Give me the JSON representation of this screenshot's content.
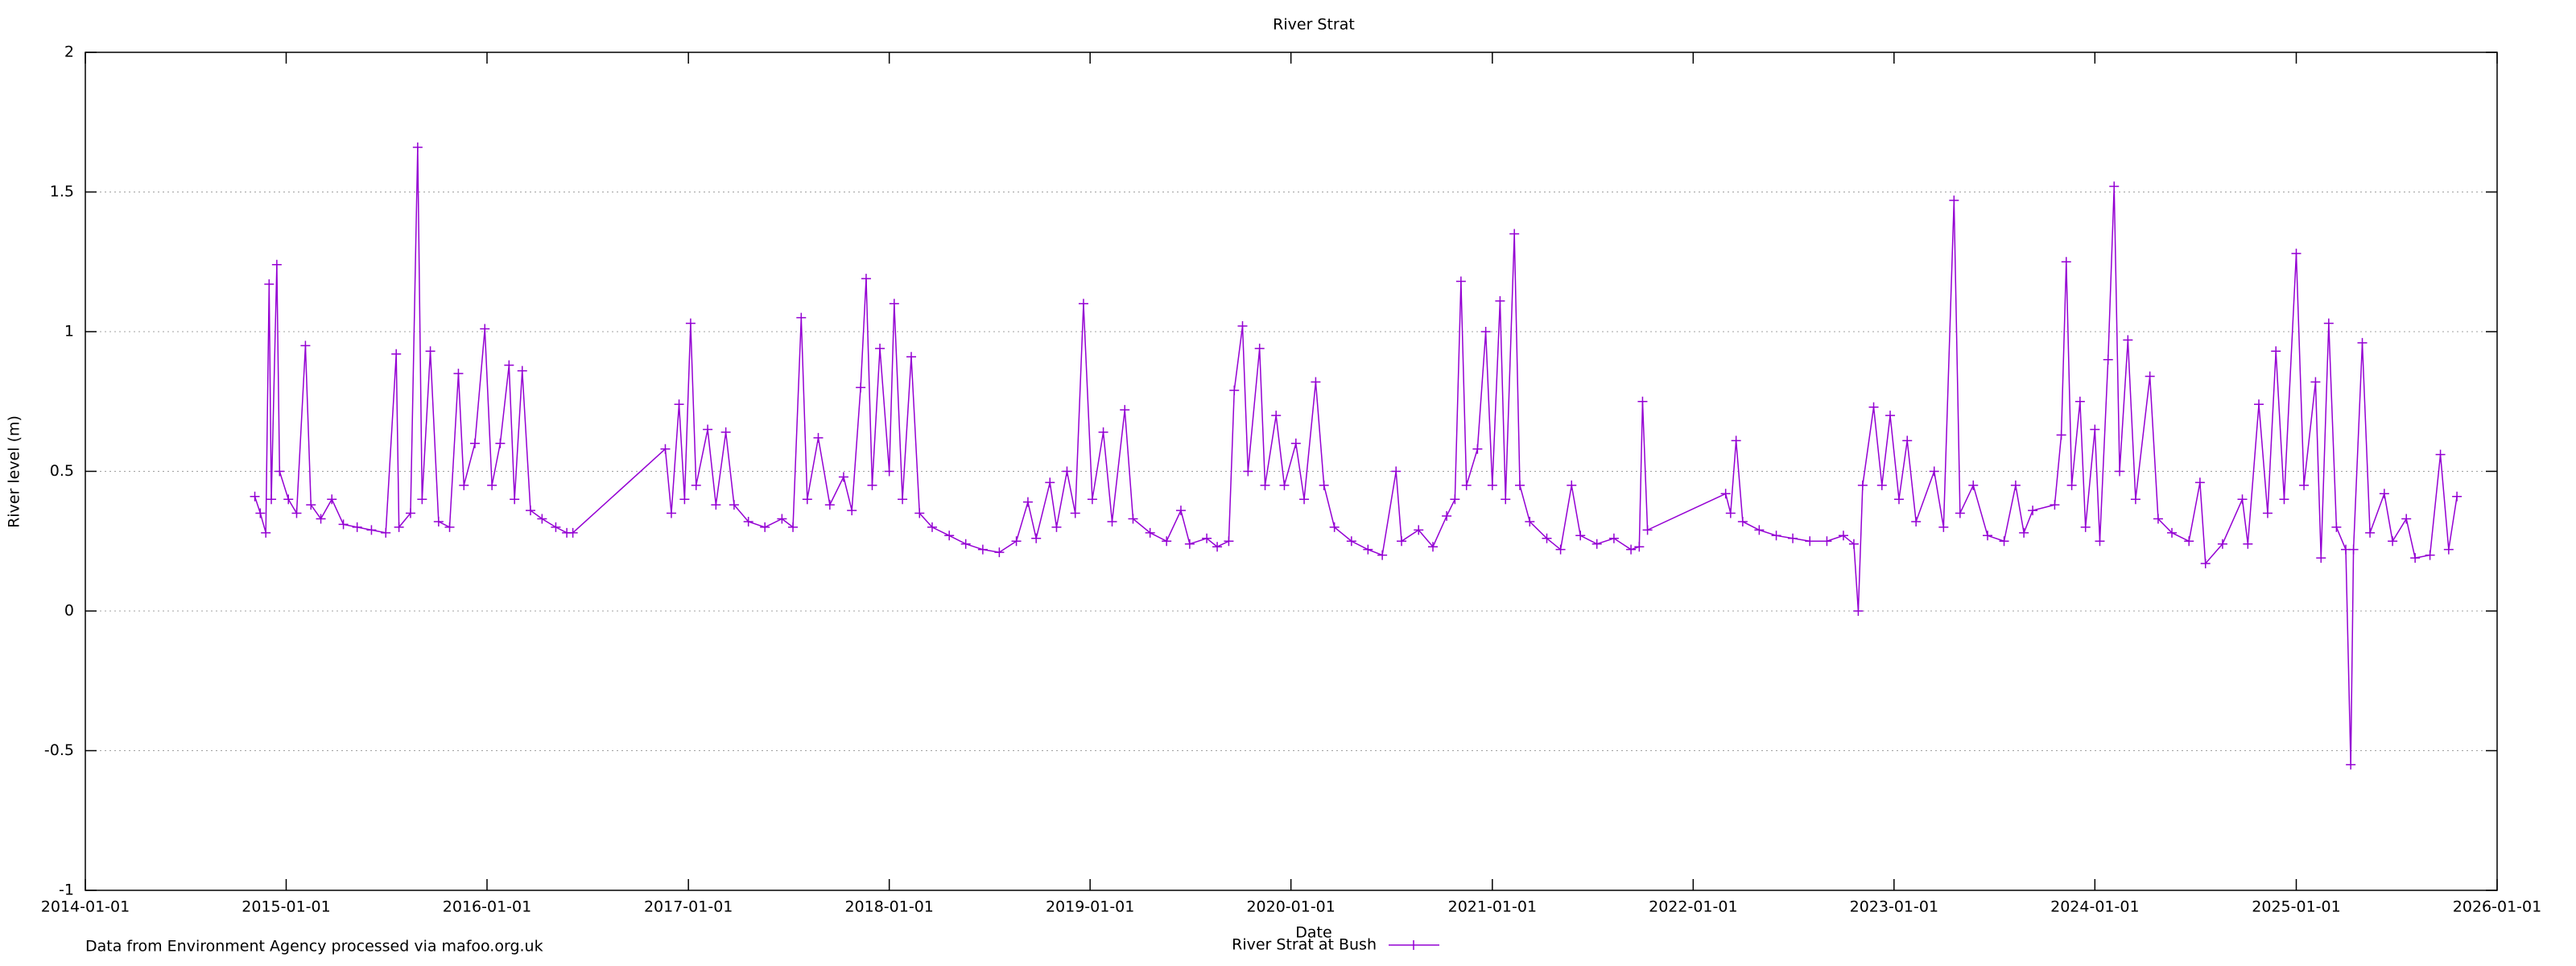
{
  "chart_data": {
    "type": "line",
    "title": "River Strat",
    "x_label": "Date",
    "y_label": "River level (m)",
    "note": "Data from Environment Agency processed via mafoo.org.uk",
    "xlim": [
      "2014-01-01",
      "2026-01-01"
    ],
    "xticks": [
      "2014-01-01",
      "2015-01-01",
      "2016-01-01",
      "2017-01-01",
      "2018-01-01",
      "2019-01-01",
      "2020-01-01",
      "2021-01-01",
      "2022-01-01",
      "2023-01-01",
      "2024-01-01",
      "2025-01-01",
      "2026-01-01"
    ],
    "ylim": [
      -1,
      2
    ],
    "yticks": [
      -1,
      -0.5,
      0,
      0.5,
      1,
      1.5,
      2
    ],
    "grid": true,
    "legend": "bottom",
    "series": [
      {
        "name": "River Strat at Bush",
        "color": "#9400d3",
        "x": [
          "2014-11-05",
          "2014-11-15",
          "2014-11-25",
          "2014-12-01",
          "2014-12-05",
          "2014-12-15",
          "2014-12-20",
          "2015-01-05",
          "2015-01-20",
          "2015-02-05",
          "2015-02-15",
          "2015-03-05",
          "2015-03-25",
          "2015-04-15",
          "2015-05-10",
          "2015-06-05",
          "2015-07-01",
          "2015-07-20",
          "2015-07-25",
          "2015-08-15",
          "2015-08-28",
          "2015-09-05",
          "2015-09-20",
          "2015-10-05",
          "2015-10-25",
          "2015-11-10",
          "2015-11-20",
          "2015-12-10",
          "2015-12-28",
          "2016-01-10",
          "2016-01-25",
          "2016-02-10",
          "2016-02-20",
          "2016-03-05",
          "2016-03-20",
          "2016-04-10",
          "2016-05-05",
          "2016-05-25",
          "2016-06-05",
          "2016-11-20",
          "2016-12-01",
          "2016-12-15",
          "2016-12-25",
          "2017-01-05",
          "2017-01-15",
          "2017-02-05",
          "2017-02-20",
          "2017-03-10",
          "2017-03-25",
          "2017-04-20",
          "2017-05-20",
          "2017-06-20",
          "2017-07-10",
          "2017-07-25",
          "2017-08-05",
          "2017-08-25",
          "2017-09-15",
          "2017-10-10",
          "2017-10-25",
          "2017-11-10",
          "2017-11-20",
          "2017-12-01",
          "2017-12-15",
          "2018-01-01",
          "2018-01-10",
          "2018-01-25",
          "2018-02-10",
          "2018-02-25",
          "2018-03-20",
          "2018-04-20",
          "2018-05-20",
          "2018-06-20",
          "2018-07-20",
          "2018-08-20",
          "2018-09-10",
          "2018-09-25",
          "2018-10-20",
          "2018-11-01",
          "2018-11-20",
          "2018-12-05",
          "2018-12-20",
          "2019-01-05",
          "2019-01-25",
          "2019-02-10",
          "2019-03-05",
          "2019-03-20",
          "2019-04-20",
          "2019-05-20",
          "2019-06-15",
          "2019-07-01",
          "2019-08-01",
          "2019-08-20",
          "2019-09-10",
          "2019-09-20",
          "2019-10-05",
          "2019-10-15",
          "2019-11-05",
          "2019-11-15",
          "2019-12-05",
          "2019-12-20",
          "2020-01-10",
          "2020-01-25",
          "2020-02-15",
          "2020-03-01",
          "2020-03-20",
          "2020-04-20",
          "2020-05-20",
          "2020-06-15",
          "2020-07-10",
          "2020-07-20",
          "2020-08-20",
          "2020-09-15",
          "2020-10-10",
          "2020-10-25",
          "2020-11-05",
          "2020-11-15",
          "2020-12-05",
          "2020-12-20",
          "2021-01-01",
          "2021-01-15",
          "2021-01-25",
          "2021-02-10",
          "2021-02-20",
          "2021-03-10",
          "2021-04-10",
          "2021-05-05",
          "2021-05-25",
          "2021-06-10",
          "2021-07-10",
          "2021-08-10",
          "2021-09-10",
          "2021-09-25",
          "2021-10-01",
          "2021-10-10",
          "2022-03-01",
          "2022-03-10",
          "2022-03-20",
          "2022-04-01",
          "2022-05-01",
          "2022-06-01",
          "2022-07-01",
          "2022-08-01",
          "2022-09-01",
          "2022-10-01",
          "2022-10-20",
          "2022-10-28",
          "2022-11-05",
          "2022-11-25",
          "2022-12-10",
          "2022-12-25",
          "2023-01-10",
          "2023-01-25",
          "2023-02-10",
          "2023-03-15",
          "2023-04-01",
          "2023-04-20",
          "2023-05-01",
          "2023-05-25",
          "2023-06-20",
          "2023-07-20",
          "2023-08-10",
          "2023-08-25",
          "2023-09-10",
          "2023-10-20",
          "2023-11-01",
          "2023-11-10",
          "2023-11-20",
          "2023-12-05",
          "2023-12-15",
          "2024-01-01",
          "2024-01-10",
          "2024-01-25",
          "2024-02-05",
          "2024-02-15",
          "2024-03-01",
          "2024-03-15",
          "2024-04-10",
          "2024-04-25",
          "2024-05-20",
          "2024-06-20",
          "2024-07-10",
          "2024-07-20",
          "2024-08-20",
          "2024-09-25",
          "2024-10-05",
          "2024-10-25",
          "2024-11-10",
          "2024-11-25",
          "2024-12-10",
          "2025-01-01",
          "2025-01-15",
          "2025-02-05",
          "2025-02-15",
          "2025-03-01",
          "2025-03-15",
          "2025-04-01",
          "2025-04-10",
          "2025-04-15",
          "2025-05-01",
          "2025-05-15",
          "2025-06-10",
          "2025-06-25",
          "2025-07-20",
          "2025-08-05",
          "2025-09-01",
          "2025-09-20",
          "2025-10-05",
          "2025-10-20"
        ],
        "values": [
          0.41,
          0.35,
          0.28,
          1.17,
          0.4,
          1.24,
          0.5,
          0.4,
          0.35,
          0.95,
          0.38,
          0.33,
          0.4,
          0.31,
          0.3,
          0.29,
          0.28,
          0.92,
          0.3,
          0.35,
          1.66,
          0.4,
          0.93,
          0.32,
          0.3,
          0.85,
          0.45,
          0.6,
          1.01,
          0.45,
          0.6,
          0.88,
          0.4,
          0.86,
          0.36,
          0.33,
          0.3,
          0.28,
          0.28,
          0.58,
          0.35,
          0.74,
          0.4,
          1.03,
          0.45,
          0.65,
          0.38,
          0.64,
          0.38,
          0.32,
          0.3,
          0.33,
          0.3,
          1.05,
          0.4,
          0.62,
          0.38,
          0.48,
          0.36,
          0.8,
          1.19,
          0.45,
          0.94,
          0.5,
          1.1,
          0.4,
          0.91,
          0.35,
          0.3,
          0.27,
          0.24,
          0.22,
          0.21,
          0.25,
          0.39,
          0.26,
          0.46,
          0.3,
          0.5,
          0.35,
          1.1,
          0.4,
          0.64,
          0.32,
          0.72,
          0.33,
          0.28,
          0.25,
          0.36,
          0.24,
          0.26,
          0.23,
          0.25,
          0.79,
          1.02,
          0.5,
          0.94,
          0.45,
          0.7,
          0.45,
          0.6,
          0.4,
          0.82,
          0.45,
          0.3,
          0.25,
          0.22,
          0.2,
          0.5,
          0.25,
          0.29,
          0.23,
          0.34,
          0.4,
          1.18,
          0.45,
          0.58,
          1.0,
          0.45,
          1.11,
          0.4,
          1.35,
          0.45,
          0.32,
          0.26,
          0.22,
          0.45,
          0.27,
          0.24,
          0.26,
          0.22,
          0.23,
          0.75,
          0.29,
          0.42,
          0.35,
          0.61,
          0.32,
          0.29,
          0.27,
          0.26,
          0.25,
          0.25,
          0.27,
          0.24,
          0,
          0.45,
          0.73,
          0.45,
          0.7,
          0.4,
          0.61,
          0.32,
          0.5,
          0.3,
          1.47,
          0.35,
          0.45,
          0.27,
          0.25,
          0.45,
          0.28,
          0.36,
          0.38,
          0.63,
          1.25,
          0.45,
          0.75,
          0.3,
          0.65,
          0.25,
          0.9,
          1.52,
          0.5,
          0.97,
          0.4,
          0.84,
          0.33,
          0.28,
          0.25,
          0.46,
          0.17,
          0.24,
          0.4,
          0.24,
          0.74,
          0.35,
          0.93,
          0.4,
          1.28,
          0.45,
          0.82,
          0.19,
          1.03,
          0.3,
          0.22,
          -0.55,
          0.22,
          0.96,
          0.28,
          0.42,
          0.25,
          0.33,
          0.19,
          0.2,
          0.56,
          0.22,
          0.41
        ]
      }
    ]
  }
}
